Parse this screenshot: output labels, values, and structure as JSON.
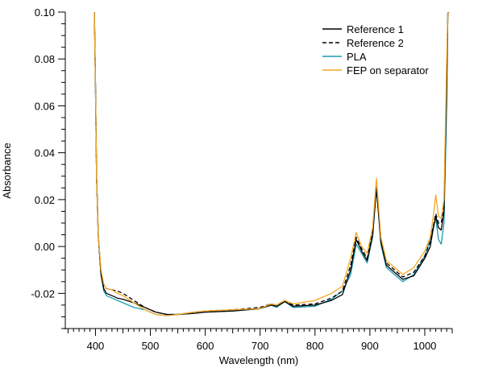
{
  "chart_data": {
    "type": "line",
    "title": "",
    "xlabel": "Wavelength (nm)",
    "ylabel": "Absorbance",
    "xlim": [
      345,
      1050
    ],
    "ylim": [
      -0.035,
      0.1
    ],
    "x_ticks": [
      400,
      500,
      600,
      700,
      800,
      900,
      1000
    ],
    "x_tick_labels": [
      "400",
      "500",
      "600",
      "700",
      "800",
      "900",
      "1000"
    ],
    "y_ticks": [
      -0.02,
      0.0,
      0.02,
      0.04,
      0.06,
      0.08,
      0.1
    ],
    "y_tick_labels": [
      "-0.02",
      "0.00",
      "0.02",
      "0.04",
      "0.06",
      "0.08",
      "0.10"
    ],
    "grid": false,
    "legend_position": "top-right",
    "series": [
      {
        "name": "Reference 1",
        "color": "#000000",
        "dash": "solid",
        "x": [
          398,
          400,
          402,
          405,
          410,
          415,
          420,
          430,
          440,
          450,
          470,
          490,
          510,
          530,
          550,
          580,
          600,
          650,
          700,
          720,
          730,
          745,
          760,
          800,
          830,
          850,
          865,
          875,
          885,
          895,
          905,
          912,
          920,
          930,
          940,
          960,
          980,
          1000,
          1010,
          1015,
          1020,
          1025,
          1030,
          1035,
          1040,
          1042,
          1045
        ],
        "y": [
          0.1,
          0.07,
          0.03,
          0.005,
          -0.012,
          -0.018,
          -0.02,
          -0.021,
          -0.022,
          -0.0225,
          -0.024,
          -0.026,
          -0.028,
          -0.029,
          -0.029,
          -0.0285,
          -0.028,
          -0.0275,
          -0.0265,
          -0.025,
          -0.0255,
          -0.0235,
          -0.0255,
          -0.025,
          -0.023,
          -0.0205,
          -0.01,
          0.003,
          -0.002,
          -0.006,
          0.005,
          0.025,
          0.002,
          -0.008,
          -0.01,
          -0.014,
          -0.0125,
          -0.005,
          0.0,
          0.007,
          0.013,
          0.008,
          0.007,
          0.015,
          0.07,
          0.1,
          0.1
        ]
      },
      {
        "name": "Reference 2",
        "color": "#000000",
        "dash": "dashed",
        "x": [
          398,
          400,
          402,
          405,
          410,
          415,
          420,
          430,
          440,
          450,
          470,
          490,
          510,
          530,
          550,
          580,
          600,
          650,
          700,
          720,
          730,
          745,
          760,
          800,
          830,
          850,
          865,
          875,
          885,
          895,
          905,
          912,
          920,
          930,
          940,
          960,
          980,
          1000,
          1010,
          1015,
          1020,
          1025,
          1030,
          1035,
          1040,
          1042,
          1045
        ],
        "y": [
          0.1,
          0.07,
          0.03,
          0.005,
          -0.012,
          -0.017,
          -0.018,
          -0.0185,
          -0.019,
          -0.02,
          -0.023,
          -0.026,
          -0.028,
          -0.029,
          -0.029,
          -0.028,
          -0.0275,
          -0.027,
          -0.026,
          -0.0245,
          -0.025,
          -0.023,
          -0.025,
          -0.0245,
          -0.022,
          -0.019,
          -0.008,
          0.004,
          -0.001,
          -0.005,
          0.006,
          0.025,
          0.003,
          -0.007,
          -0.009,
          -0.013,
          -0.011,
          -0.004,
          0.002,
          0.008,
          0.014,
          0.01,
          0.01,
          0.017,
          0.072,
          0.1,
          0.1
        ]
      },
      {
        "name": "PLA",
        "color": "#1a9cb0",
        "dash": "solid",
        "x": [
          398,
          400,
          402,
          405,
          410,
          415,
          420,
          430,
          440,
          450,
          470,
          490,
          510,
          530,
          550,
          580,
          600,
          650,
          700,
          720,
          730,
          745,
          760,
          800,
          830,
          850,
          865,
          875,
          885,
          895,
          905,
          912,
          920,
          930,
          940,
          960,
          980,
          1000,
          1010,
          1015,
          1020,
          1025,
          1030,
          1035,
          1040,
          1042,
          1045
        ],
        "y": [
          0.1,
          0.07,
          0.03,
          0.005,
          -0.012,
          -0.019,
          -0.021,
          -0.022,
          -0.023,
          -0.024,
          -0.026,
          -0.027,
          -0.029,
          -0.0295,
          -0.029,
          -0.0285,
          -0.028,
          -0.0275,
          -0.0265,
          -0.025,
          -0.026,
          -0.0235,
          -0.026,
          -0.0255,
          -0.0225,
          -0.019,
          -0.012,
          0.001,
          -0.003,
          -0.007,
          0.004,
          0.025,
          0.001,
          -0.009,
          -0.011,
          -0.015,
          -0.012,
          -0.004,
          0.003,
          0.008,
          0.012,
          0.003,
          0.001,
          0.01,
          0.06,
          0.1,
          0.1
        ]
      },
      {
        "name": "FEP on separator",
        "color": "#f5a623",
        "dash": "solid",
        "x": [
          398,
          400,
          402,
          405,
          410,
          415,
          420,
          430,
          440,
          450,
          470,
          490,
          510,
          530,
          550,
          580,
          600,
          650,
          700,
          720,
          730,
          745,
          760,
          800,
          830,
          850,
          865,
          875,
          885,
          895,
          905,
          912,
          920,
          930,
          940,
          960,
          980,
          1000,
          1010,
          1015,
          1020,
          1025,
          1030,
          1035,
          1040,
          1042,
          1045
        ],
        "y": [
          0.1,
          0.07,
          0.03,
          0.005,
          -0.01,
          -0.016,
          -0.018,
          -0.0185,
          -0.02,
          -0.021,
          -0.024,
          -0.027,
          -0.029,
          -0.0295,
          -0.029,
          -0.028,
          -0.0275,
          -0.027,
          -0.0265,
          -0.0245,
          -0.025,
          -0.023,
          -0.0245,
          -0.023,
          -0.02,
          -0.017,
          -0.005,
          0.006,
          0.0,
          -0.003,
          0.008,
          0.029,
          0.004,
          -0.006,
          -0.008,
          -0.012,
          -0.009,
          -0.002,
          0.004,
          0.012,
          0.022,
          0.013,
          0.012,
          0.02,
          0.08,
          0.1,
          0.1
        ]
      }
    ]
  }
}
